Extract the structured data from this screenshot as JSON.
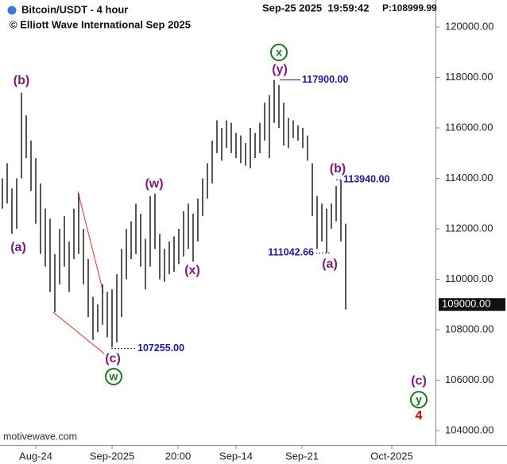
{
  "chart_data": {
    "type": "ohlc",
    "title": "Bitcoin/USDT - 4 hour",
    "subtitle": "© Elliott Wave International Sep 2025",
    "timestamp": "Sep-25 2025  19:59:42",
    "last_price_text": "P:108999.99",
    "watermark": "motivewave.com",
    "color": "#111111",
    "x": [
      0,
      3,
      6,
      9,
      12,
      15,
      18,
      21,
      24,
      27,
      30,
      33,
      36,
      39,
      42,
      45,
      48,
      51,
      54,
      57,
      60,
      63,
      66,
      69,
      72,
      75,
      78,
      81,
      84,
      87,
      90,
      93,
      96,
      99,
      102,
      105,
      108,
      111,
      114,
      117,
      120,
      123,
      126,
      129,
      132,
      135,
      138,
      141,
      144,
      147,
      150,
      153,
      156,
      159,
      162,
      165,
      168,
      171,
      174,
      177,
      180,
      183,
      186,
      189,
      192,
      195,
      198,
      201,
      204,
      207,
      210,
      213,
      216
    ],
    "high": [
      114000,
      114600,
      113600,
      114000,
      117400,
      116500,
      115500,
      114800,
      113800,
      112800,
      112400,
      111000,
      112000,
      112500,
      111500,
      112800,
      113400,
      112000,
      110800,
      109300,
      109000,
      109800,
      109500,
      109600,
      110200,
      111200,
      112000,
      112300,
      113000,
      112600,
      111600,
      113300,
      113400,
      111800,
      111200,
      111500,
      111700,
      112000,
      112700,
      113000,
      112600,
      113200,
      114000,
      114600,
      115500,
      116300,
      116000,
      116300,
      116200,
      115800,
      115700,
      115400,
      116000,
      115800,
      116200,
      117000,
      117300,
      117900,
      117700,
      117000,
      116400,
      116300,
      116100,
      116000,
      115700,
      114600,
      113300,
      113000,
      112800,
      113000,
      113700,
      113940,
      112200
    ],
    "low": [
      112800,
      113000,
      111800,
      112000,
      114000,
      114800,
      113500,
      112200,
      111000,
      110500,
      109500,
      108700,
      109800,
      110500,
      109500,
      110800,
      111000,
      109800,
      108500,
      107600,
      107900,
      108200,
      107700,
      107300,
      107500,
      108500,
      110000,
      110800,
      111000,
      110500,
      109600,
      110500,
      111200,
      110000,
      109900,
      110200,
      110300,
      110600,
      110900,
      111200,
      110700,
      111500,
      112500,
      113200,
      113800,
      115000,
      114700,
      115200,
      115000,
      114800,
      114600,
      114500,
      114400,
      114800,
      115000,
      115500,
      114800,
      116200,
      116000,
      115300,
      115200,
      115600,
      115500,
      115200,
      114700,
      112500,
      111200,
      111500,
      111042,
      112000,
      112300,
      111500,
      108800
    ],
    "xlim": [
      -1.5,
      272.5
    ],
    "ylim": [
      103496,
      121071
    ],
    "xticks": [
      {
        "value": 21,
        "label": "Aug-24"
      },
      {
        "value": 69,
        "label": "Sep-2025"
      },
      {
        "value": 110.5,
        "label": "20:00"
      },
      {
        "value": 147,
        "label": "Sep-14"
      },
      {
        "value": 188.5,
        "label": "Sep-21"
      },
      {
        "value": 245,
        "label": "Oct-2025"
      }
    ],
    "yticks": [
      {
        "value": 104000,
        "label": "104000.00"
      },
      {
        "value": 106000,
        "label": "106000.00"
      },
      {
        "value": 108000,
        "label": "108000.00"
      },
      {
        "value": 110000,
        "label": "110000.00"
      },
      {
        "value": 112000,
        "label": "112000.00"
      },
      {
        "value": 114000,
        "label": "114000.00"
      },
      {
        "value": 116000,
        "label": "116000.00"
      },
      {
        "value": 118000,
        "label": "118000.00"
      },
      {
        "value": 120000,
        "label": "120000.00"
      }
    ],
    "last_price": {
      "value": 109000,
      "label": "109000.00"
    },
    "price_levels": [
      {
        "value": 117900,
        "label": "117900.00"
      },
      {
        "value": 113940,
        "label": "113940.00"
      },
      {
        "value": 111042.66,
        "label": "111042.66"
      },
      {
        "value": 107255,
        "label": "107255.00"
      }
    ],
    "wave_labels": [
      {
        "text": "(b)",
        "color": "#7b1a7b"
      },
      {
        "text": "(a)",
        "color": "#7b1a7b"
      },
      {
        "text": "(c)",
        "color": "#7b1a7b"
      },
      {
        "text": "w",
        "color": "#1a7a1a"
      },
      {
        "text": "(w)",
        "color": "#7b1a7b"
      },
      {
        "text": "(x)",
        "color": "#7b1a7b"
      },
      {
        "text": "x",
        "color": "#1a7a1a"
      },
      {
        "text": "(y)",
        "color": "#7b1a7b"
      },
      {
        "text": "(b)",
        "color": "#7b1a7b"
      },
      {
        "text": "(a)",
        "color": "#7b1a7b"
      },
      {
        "text": "(c)",
        "color": "#7b1a7b"
      },
      {
        "text": "y",
        "color": "#1a7a1a"
      },
      {
        "text": "4",
        "color": "#cc0000"
      }
    ]
  }
}
